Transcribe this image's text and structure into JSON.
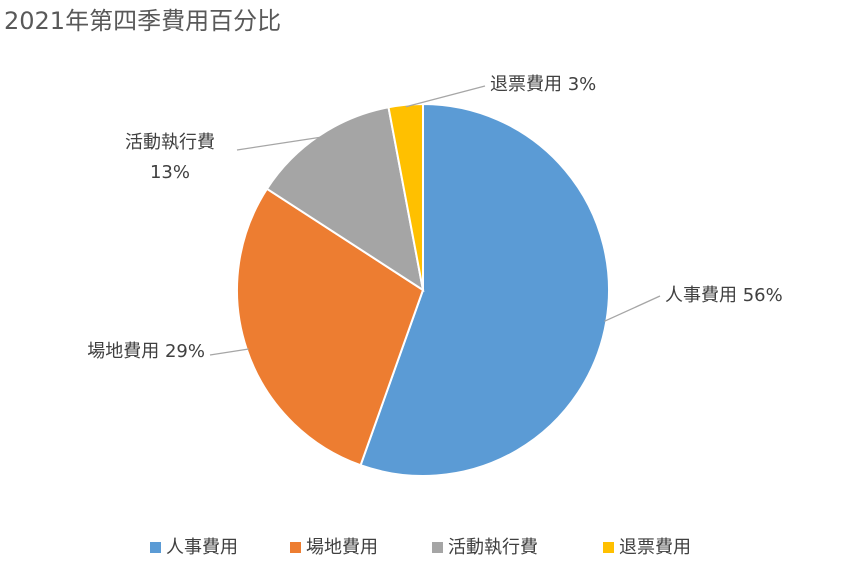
{
  "chart_data": {
    "type": "pie",
    "title": "2021年第四季費用百分比",
    "categories": [
      "人事費用",
      "場地費用",
      "活動執行費",
      "退票費用"
    ],
    "values": [
      56,
      29,
      13,
      3
    ],
    "value_labels": [
      "56%",
      "29%",
      "13%",
      "3%"
    ],
    "colors": [
      "#5b9bd5",
      "#ed7d31",
      "#a5a5a5",
      "#ffc000"
    ],
    "legend": "bottom"
  }
}
